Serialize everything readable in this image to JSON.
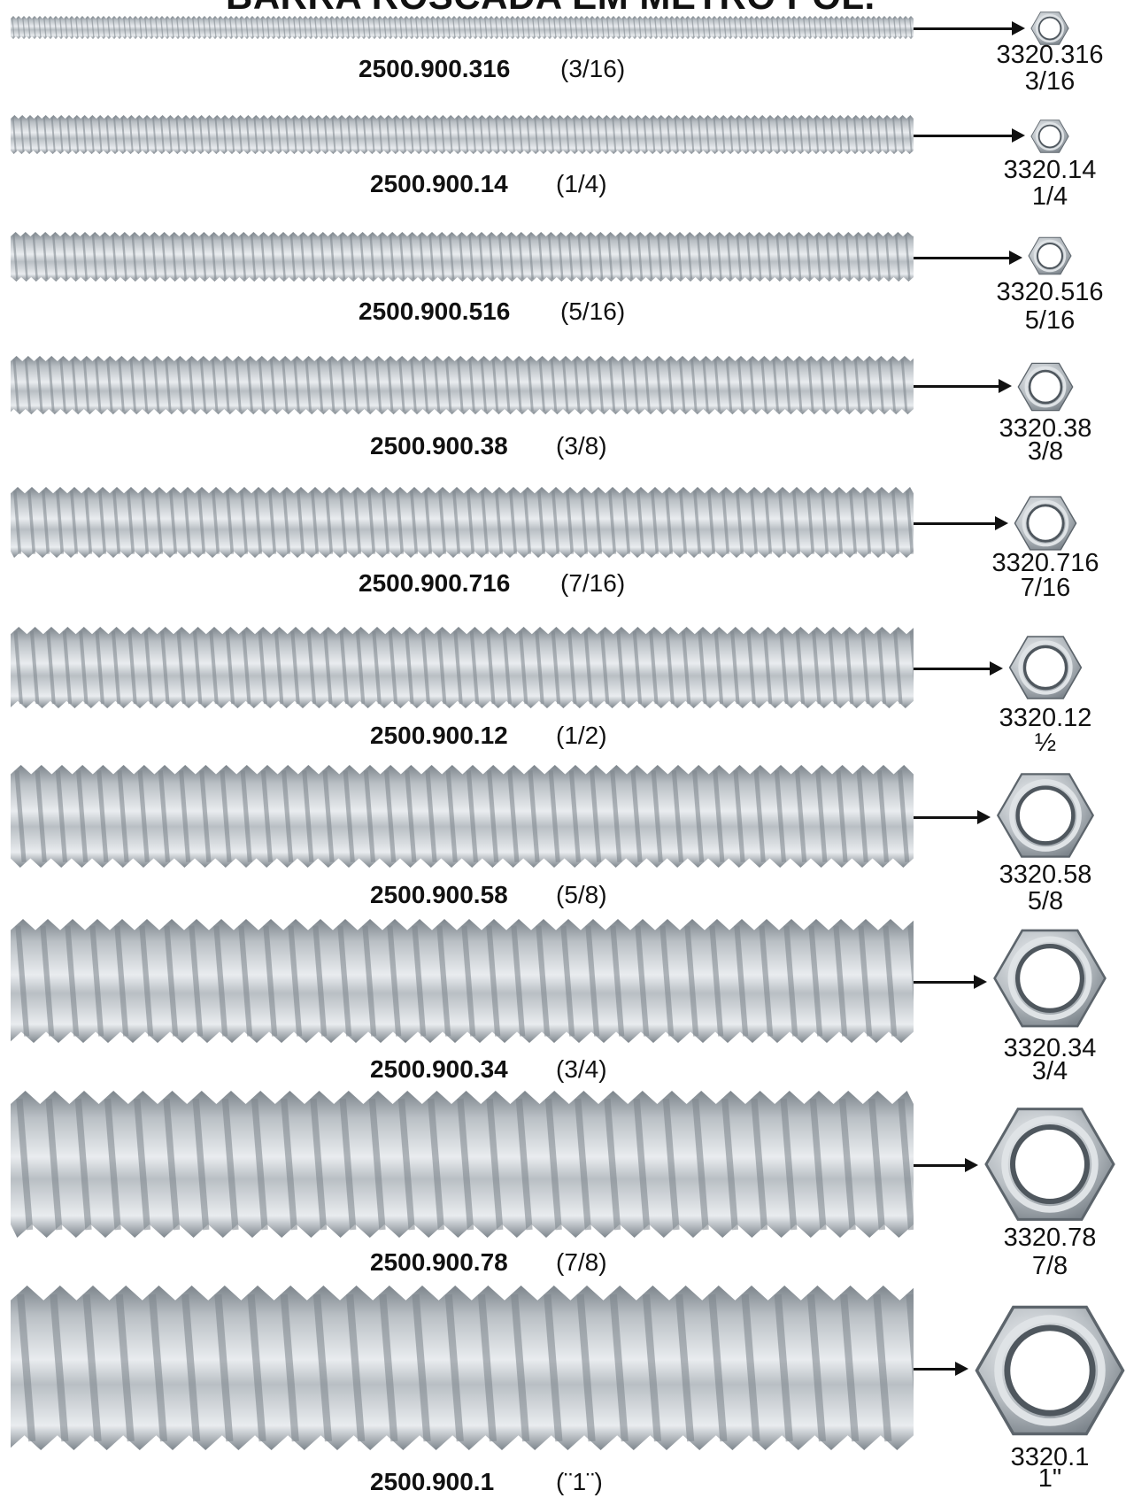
{
  "title": "BARRA ROSCADA EM METRO POL.",
  "colors": {
    "steel_light": "#e9ecef",
    "steel_mid": "#b9bfc4",
    "steel_dark": "#7d858c",
    "ink": "#111111"
  },
  "rows": [
    {
      "rod_code": "2500.900.316",
      "rod_size": "(3/16)",
      "nut_code": "3320.316",
      "nut_size": "3/16"
    },
    {
      "rod_code": "2500.900.14",
      "rod_size": "(1/4)",
      "nut_code": "3320.14",
      "nut_size": "1/4"
    },
    {
      "rod_code": "2500.900.516",
      "rod_size": "(5/16)",
      "nut_code": "3320.516",
      "nut_size": "5/16"
    },
    {
      "rod_code": "2500.900.38",
      "rod_size": "(3/8)",
      "nut_code": "3320.38",
      "nut_size": "3/8"
    },
    {
      "rod_code": "2500.900.716",
      "rod_size": "(7/16)",
      "nut_code": "3320.716",
      "nut_size": "7/16"
    },
    {
      "rod_code": "2500.900.12",
      "rod_size": "(1/2)",
      "nut_code": "3320.12",
      "nut_size": "½"
    },
    {
      "rod_code": "2500.900.58",
      "rod_size": "(5/8)",
      "nut_code": "3320.58",
      "nut_size": "5/8"
    },
    {
      "rod_code": "2500.900.34",
      "rod_size": "(3/4)",
      "nut_code": "3320.34",
      "nut_size": "3/4"
    },
    {
      "rod_code": "2500.900.78",
      "rod_size": "(7/8)",
      "nut_code": "3320.78",
      "nut_size": "7/8"
    },
    {
      "rod_code": "2500.900.1",
      "rod_size": "(¨1¨)",
      "nut_code": "3320.1",
      "nut_size": "1\""
    }
  ]
}
